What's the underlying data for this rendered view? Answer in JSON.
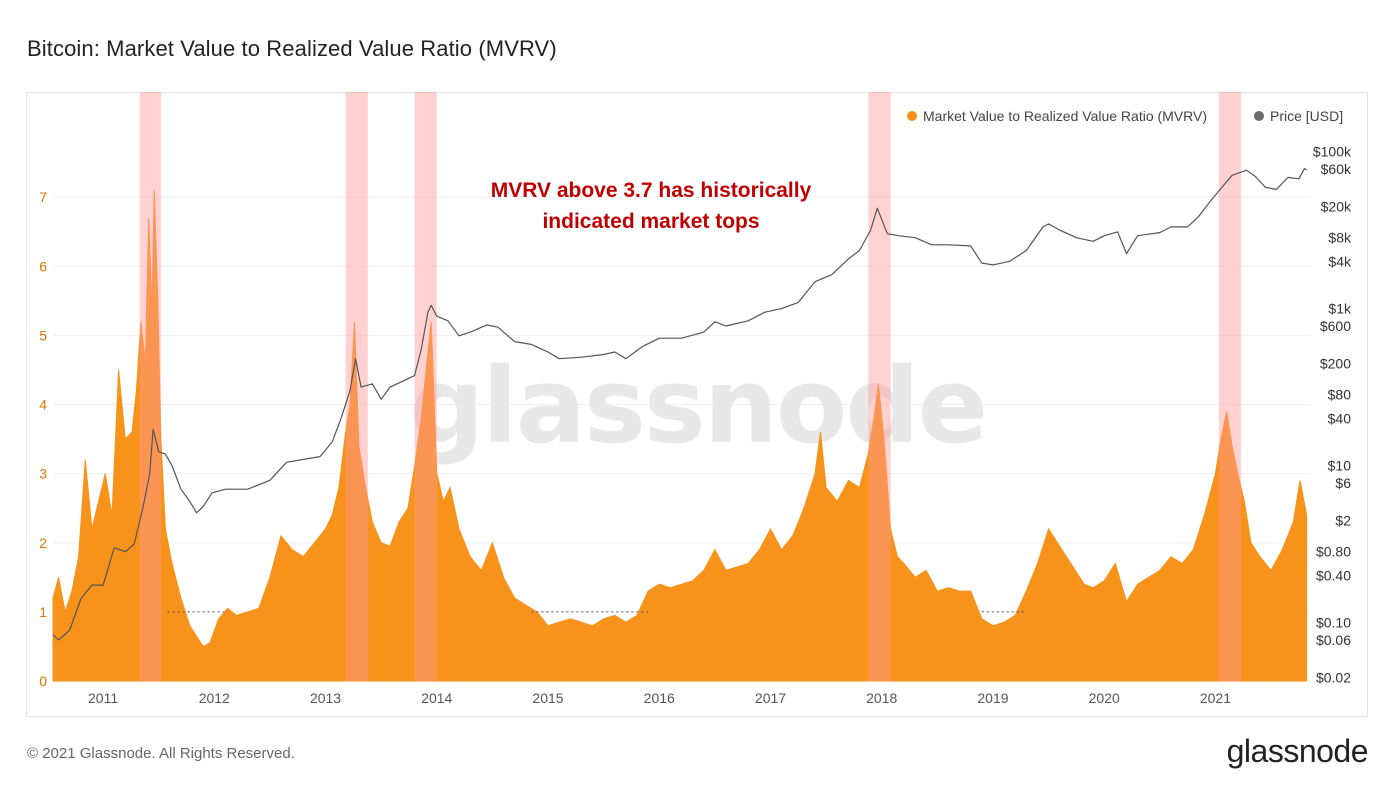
{
  "page": {
    "title": "Bitcoin: Market Value to Realized Value Ratio (MVRV)",
    "copyright": "© 2021 Glassnode. All Rights Reserved.",
    "brand": "glassnode",
    "watermark": "glassnode"
  },
  "colors": {
    "mvrv": "#f7931a",
    "mvrv_dark": "#ff6f10",
    "price": "#6b6b6b",
    "highlight": "#ff9a9a",
    "annotation": "#c00000",
    "left_axis": "#d97800"
  },
  "chart_data": {
    "type": "area",
    "annotation": [
      "MVRV above 3.7 has historically",
      "indicated market tops"
    ],
    "legend": [
      {
        "label": "Market Value to Realized Value Ratio (MVRV)",
        "color": "#f7931a"
      },
      {
        "label": "Price [USD]",
        "color": "#6b6b6b"
      }
    ],
    "legend_position": "top-right",
    "x_ticks": [
      "2011",
      "2012",
      "2013",
      "2014",
      "2015",
      "2016",
      "2017",
      "2018",
      "2019",
      "2020",
      "2021"
    ],
    "xlim": [
      2010.55,
      2021.85
    ],
    "y_left": {
      "ticks": [
        0,
        1,
        2,
        3,
        4,
        5,
        6,
        7
      ],
      "lim": [
        0,
        8.0
      ]
    },
    "y_right": {
      "scale": "log",
      "ticks": [
        100000,
        60000,
        20000,
        8000,
        4000,
        1000,
        600,
        200,
        80,
        40,
        10,
        6,
        2,
        0.8,
        0.4,
        0.1,
        0.06,
        0.02
      ],
      "tick_labels": [
        "$100k",
        "$60k",
        "$20k",
        "$8k",
        "$4k",
        "$1k",
        "$600",
        "$200",
        "$80",
        "$40",
        "$10",
        "$6",
        "$2",
        "$0.80",
        "$0.40",
        "$0.10",
        "$0.06",
        "$0.02"
      ],
      "lim": [
        0.018,
        200000
      ]
    },
    "mvrv_reference_line": 1,
    "highlight_ranges": [
      [
        2011.33,
        2011.52
      ],
      [
        2013.18,
        2013.38
      ],
      [
        2013.8,
        2014.0
      ],
      [
        2017.88,
        2018.08
      ],
      [
        2021.03,
        2021.23
      ]
    ],
    "series": [
      {
        "name": "Market Value to Realized Value Ratio (MVRV)",
        "points": [
          [
            2010.55,
            1.2
          ],
          [
            2010.6,
            1.5
          ],
          [
            2010.66,
            1.0
          ],
          [
            2010.72,
            1.3
          ],
          [
            2010.78,
            1.8
          ],
          [
            2010.84,
            3.2
          ],
          [
            2010.9,
            2.2
          ],
          [
            2010.96,
            2.6
          ],
          [
            2011.02,
            3.0
          ],
          [
            2011.08,
            2.4
          ],
          [
            2011.14,
            4.5
          ],
          [
            2011.2,
            3.5
          ],
          [
            2011.26,
            3.6
          ],
          [
            2011.3,
            4.2
          ],
          [
            2011.34,
            5.2
          ],
          [
            2011.38,
            4.6
          ],
          [
            2011.41,
            6.7
          ],
          [
            2011.44,
            5.4
          ],
          [
            2011.46,
            7.1
          ],
          [
            2011.49,
            5.6
          ],
          [
            2011.52,
            3.5
          ],
          [
            2011.56,
            2.2
          ],
          [
            2011.62,
            1.7
          ],
          [
            2011.7,
            1.2
          ],
          [
            2011.78,
            0.8
          ],
          [
            2011.84,
            0.65
          ],
          [
            2011.9,
            0.5
          ],
          [
            2011.96,
            0.55
          ],
          [
            2012.04,
            0.9
          ],
          [
            2012.12,
            1.05
          ],
          [
            2012.2,
            0.95
          ],
          [
            2012.3,
            1.0
          ],
          [
            2012.4,
            1.05
          ],
          [
            2012.5,
            1.5
          ],
          [
            2012.6,
            2.1
          ],
          [
            2012.7,
            1.9
          ],
          [
            2012.8,
            1.8
          ],
          [
            2012.9,
            2.0
          ],
          [
            2013.0,
            2.2
          ],
          [
            2013.06,
            2.4
          ],
          [
            2013.12,
            2.8
          ],
          [
            2013.18,
            3.6
          ],
          [
            2013.22,
            4.0
          ],
          [
            2013.26,
            5.2
          ],
          [
            2013.3,
            3.4
          ],
          [
            2013.36,
            2.8
          ],
          [
            2013.42,
            2.3
          ],
          [
            2013.5,
            2.0
          ],
          [
            2013.58,
            1.95
          ],
          [
            2013.66,
            2.3
          ],
          [
            2013.74,
            2.5
          ],
          [
            2013.8,
            3.1
          ],
          [
            2013.86,
            3.8
          ],
          [
            2013.91,
            4.6
          ],
          [
            2013.95,
            5.2
          ],
          [
            2014.0,
            3.0
          ],
          [
            2014.06,
            2.6
          ],
          [
            2014.12,
            2.8
          ],
          [
            2014.2,
            2.2
          ],
          [
            2014.3,
            1.8
          ],
          [
            2014.4,
            1.6
          ],
          [
            2014.5,
            2.0
          ],
          [
            2014.6,
            1.5
          ],
          [
            2014.7,
            1.2
          ],
          [
            2014.8,
            1.1
          ],
          [
            2014.9,
            1.0
          ],
          [
            2015.0,
            0.8
          ],
          [
            2015.1,
            0.85
          ],
          [
            2015.2,
            0.9
          ],
          [
            2015.3,
            0.85
          ],
          [
            2015.4,
            0.8
          ],
          [
            2015.5,
            0.9
          ],
          [
            2015.6,
            0.95
          ],
          [
            2015.7,
            0.85
          ],
          [
            2015.8,
            0.95
          ],
          [
            2015.9,
            1.3
          ],
          [
            2016.0,
            1.4
          ],
          [
            2016.1,
            1.35
          ],
          [
            2016.2,
            1.4
          ],
          [
            2016.3,
            1.45
          ],
          [
            2016.4,
            1.6
          ],
          [
            2016.5,
            1.9
          ],
          [
            2016.6,
            1.6
          ],
          [
            2016.7,
            1.65
          ],
          [
            2016.8,
            1.7
          ],
          [
            2016.9,
            1.9
          ],
          [
            2017.0,
            2.2
          ],
          [
            2017.1,
            1.9
          ],
          [
            2017.2,
            2.1
          ],
          [
            2017.3,
            2.5
          ],
          [
            2017.4,
            3.0
          ],
          [
            2017.45,
            3.6
          ],
          [
            2017.5,
            2.8
          ],
          [
            2017.6,
            2.6
          ],
          [
            2017.7,
            2.9
          ],
          [
            2017.8,
            2.8
          ],
          [
            2017.88,
            3.3
          ],
          [
            2017.93,
            3.8
          ],
          [
            2017.97,
            4.3
          ],
          [
            2018.02,
            3.5
          ],
          [
            2018.08,
            2.2
          ],
          [
            2018.14,
            1.8
          ],
          [
            2018.2,
            1.7
          ],
          [
            2018.3,
            1.5
          ],
          [
            2018.4,
            1.6
          ],
          [
            2018.5,
            1.3
          ],
          [
            2018.6,
            1.35
          ],
          [
            2018.7,
            1.3
          ],
          [
            2018.8,
            1.3
          ],
          [
            2018.9,
            0.9
          ],
          [
            2019.0,
            0.8
          ],
          [
            2019.1,
            0.85
          ],
          [
            2019.2,
            0.95
          ],
          [
            2019.3,
            1.3
          ],
          [
            2019.4,
            1.7
          ],
          [
            2019.5,
            2.2
          ],
          [
            2019.58,
            2.0
          ],
          [
            2019.66,
            1.8
          ],
          [
            2019.74,
            1.6
          ],
          [
            2019.82,
            1.4
          ],
          [
            2019.9,
            1.35
          ],
          [
            2020.0,
            1.45
          ],
          [
            2020.1,
            1.7
          ],
          [
            2020.2,
            1.15
          ],
          [
            2020.3,
            1.4
          ],
          [
            2020.4,
            1.5
          ],
          [
            2020.5,
            1.6
          ],
          [
            2020.6,
            1.8
          ],
          [
            2020.7,
            1.7
          ],
          [
            2020.8,
            1.9
          ],
          [
            2020.9,
            2.4
          ],
          [
            2021.0,
            3.0
          ],
          [
            2021.05,
            3.5
          ],
          [
            2021.1,
            3.9
          ],
          [
            2021.15,
            3.4
          ],
          [
            2021.2,
            3.0
          ],
          [
            2021.26,
            2.6
          ],
          [
            2021.32,
            2.0
          ],
          [
            2021.4,
            1.8
          ],
          [
            2021.5,
            1.6
          ],
          [
            2021.6,
            1.9
          ],
          [
            2021.7,
            2.3
          ],
          [
            2021.76,
            2.9
          ],
          [
            2021.82,
            2.4
          ]
        ]
      },
      {
        "name": "Price [USD]",
        "points": [
          [
            2010.55,
            0.07
          ],
          [
            2010.6,
            0.06
          ],
          [
            2010.7,
            0.08
          ],
          [
            2010.8,
            0.2
          ],
          [
            2010.9,
            0.3
          ],
          [
            2011.0,
            0.3
          ],
          [
            2011.1,
            0.9
          ],
          [
            2011.2,
            0.8
          ],
          [
            2011.28,
            1.0
          ],
          [
            2011.36,
            3.0
          ],
          [
            2011.42,
            8.0
          ],
          [
            2011.45,
            29
          ],
          [
            2011.5,
            15
          ],
          [
            2011.56,
            14
          ],
          [
            2011.62,
            10
          ],
          [
            2011.7,
            5.0
          ],
          [
            2011.78,
            3.5
          ],
          [
            2011.84,
            2.5
          ],
          [
            2011.9,
            3.0
          ],
          [
            2011.98,
            4.5
          ],
          [
            2012.1,
            5.0
          ],
          [
            2012.3,
            5.0
          ],
          [
            2012.5,
            6.5
          ],
          [
            2012.65,
            11
          ],
          [
            2012.8,
            12
          ],
          [
            2012.95,
            13
          ],
          [
            2013.06,
            20
          ],
          [
            2013.14,
            40
          ],
          [
            2013.22,
            90
          ],
          [
            2013.27,
            230
          ],
          [
            2013.32,
            100
          ],
          [
            2013.42,
            110
          ],
          [
            2013.5,
            70
          ],
          [
            2013.58,
            100
          ],
          [
            2013.7,
            120
          ],
          [
            2013.8,
            140
          ],
          [
            2013.86,
            300
          ],
          [
            2013.92,
            900
          ],
          [
            2013.95,
            1100
          ],
          [
            2014.0,
            800
          ],
          [
            2014.1,
            700
          ],
          [
            2014.2,
            450
          ],
          [
            2014.3,
            500
          ],
          [
            2014.45,
            620
          ],
          [
            2014.55,
            580
          ],
          [
            2014.7,
            380
          ],
          [
            2014.85,
            350
          ],
          [
            2015.0,
            280
          ],
          [
            2015.1,
            230
          ],
          [
            2015.3,
            240
          ],
          [
            2015.5,
            260
          ],
          [
            2015.6,
            280
          ],
          [
            2015.7,
            230
          ],
          [
            2015.85,
            330
          ],
          [
            2016.0,
            420
          ],
          [
            2016.2,
            420
          ],
          [
            2016.4,
            500
          ],
          [
            2016.5,
            680
          ],
          [
            2016.6,
            600
          ],
          [
            2016.8,
            700
          ],
          [
            2016.95,
            900
          ],
          [
            2017.1,
            1000
          ],
          [
            2017.25,
            1200
          ],
          [
            2017.4,
            2200
          ],
          [
            2017.55,
            2700
          ],
          [
            2017.7,
            4300
          ],
          [
            2017.8,
            5500
          ],
          [
            2017.9,
            10000
          ],
          [
            2017.96,
            19000
          ],
          [
            2018.05,
            9000
          ],
          [
            2018.15,
            8500
          ],
          [
            2018.3,
            8000
          ],
          [
            2018.45,
            6500
          ],
          [
            2018.6,
            6500
          ],
          [
            2018.8,
            6300
          ],
          [
            2018.9,
            3800
          ],
          [
            2019.0,
            3600
          ],
          [
            2019.15,
            4000
          ],
          [
            2019.3,
            5500
          ],
          [
            2019.45,
            11000
          ],
          [
            2019.5,
            12000
          ],
          [
            2019.6,
            10000
          ],
          [
            2019.75,
            8000
          ],
          [
            2019.9,
            7200
          ],
          [
            2020.0,
            8500
          ],
          [
            2020.12,
            9500
          ],
          [
            2020.2,
            5000
          ],
          [
            2020.3,
            8500
          ],
          [
            2020.5,
            9300
          ],
          [
            2020.6,
            11000
          ],
          [
            2020.75,
            11000
          ],
          [
            2020.85,
            15000
          ],
          [
            2020.95,
            23000
          ],
          [
            2021.05,
            34000
          ],
          [
            2021.15,
            50000
          ],
          [
            2021.28,
            58000
          ],
          [
            2021.36,
            48000
          ],
          [
            2021.45,
            35000
          ],
          [
            2021.55,
            33000
          ],
          [
            2021.65,
            47000
          ],
          [
            2021.75,
            45000
          ],
          [
            2021.8,
            61000
          ],
          [
            2021.82,
            58000
          ]
        ]
      }
    ]
  }
}
